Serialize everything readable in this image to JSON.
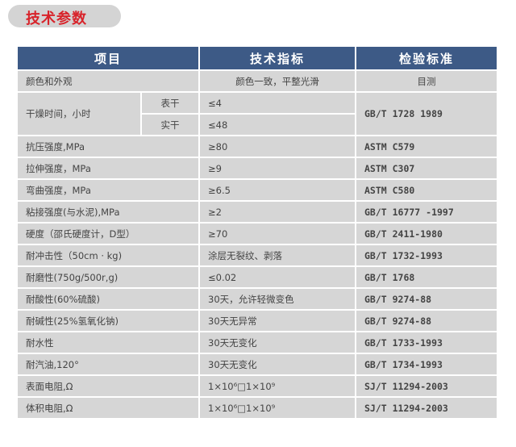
{
  "title": "技术参数",
  "headers": [
    "项目",
    "技术指标",
    "检验标准"
  ],
  "appearance": {
    "item": "颜色和外观",
    "spec": "颜色一致，平整光滑",
    "standard": "目测"
  },
  "dry_time": {
    "item": "干燥时间，小时",
    "sub": [
      {
        "label": "表干",
        "spec": "≤4"
      },
      {
        "label": "实干",
        "spec": "≤48"
      }
    ],
    "standard": "GB/T 1728 1989"
  },
  "rows": [
    {
      "item": "抗压强度,MPa",
      "spec": "≥80",
      "standard": "ASTM C579"
    },
    {
      "item": "拉伸强度，MPa",
      "spec": "≥9",
      "standard": "ASTM C307"
    },
    {
      "item": "弯曲强度，MPa",
      "spec": "≥6.5",
      "standard": "ASTM C580"
    },
    {
      "item": "粘接强度(与水泥),MPa",
      "spec": "≥2",
      "standard": "GB/T 16777 -1997"
    },
    {
      "item": "硬度（邵氏硬度计，D型）",
      "spec": "≥70",
      "standard": "GB/T 2411-1980"
    },
    {
      "item": "耐冲击性（50cm · kg)",
      "spec": "涂层无裂纹、剥落",
      "standard": "GB/T 1732-1993"
    },
    {
      "item": "耐磨性(750g/500r,g)",
      "spec": "≤0.02",
      "standard": "GB/T 1768"
    },
    {
      "item": "耐酸性(60%硫酸)",
      "spec": "30天，允许轻微变色",
      "standard": "GB/T 9274-88"
    },
    {
      "item": "耐碱性(25%氢氧化钠)",
      "spec": "30天无异常",
      "standard": "GB/T 9274-88"
    },
    {
      "item": "耐水性",
      "spec": "30天无变化",
      "standard": "GB/T 1733-1993"
    },
    {
      "item": "耐汽油,120°",
      "spec": "30天无变化",
      "standard": "GB/T 1734-1993"
    },
    {
      "item": "表面电阻,Ω",
      "spec": "1×10⁶□1×10⁹",
      "standard": "SJ/T 11294-2003"
    },
    {
      "item": "体积电阻,Ω",
      "spec": "1×10⁶□1×10⁹",
      "standard": "SJ/T 11294-2003"
    }
  ]
}
